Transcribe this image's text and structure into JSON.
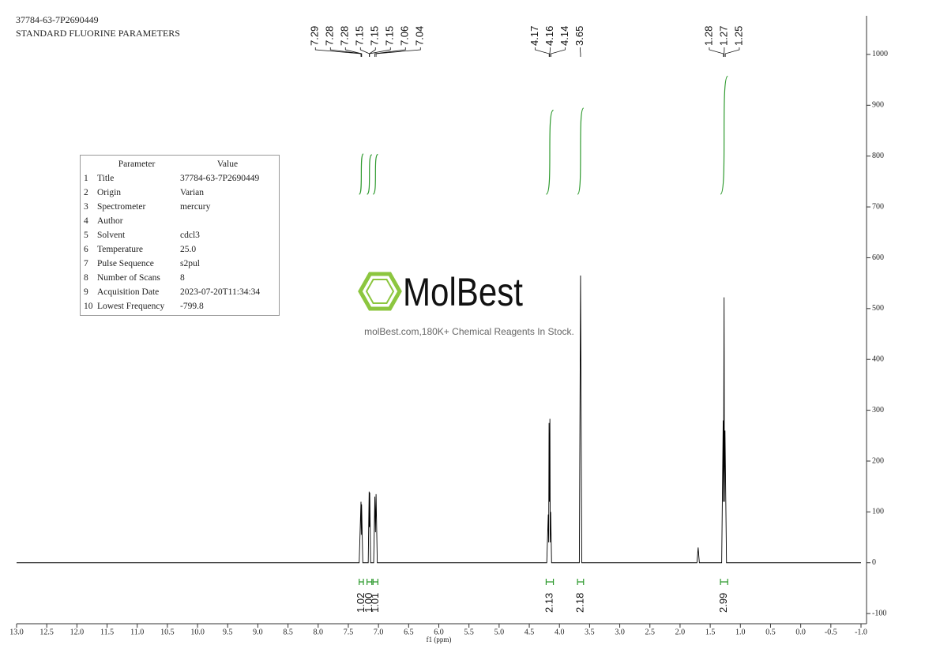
{
  "header": {
    "title": "37784-63-7P2690449",
    "subtitle": "STANDARD FLUORINE PARAMETERS"
  },
  "parameters": {
    "columns": [
      "Parameter",
      "Value"
    ],
    "rows": [
      {
        "index": 1,
        "name": "Title",
        "value": "37784-63-7P2690449"
      },
      {
        "index": 2,
        "name": "Origin",
        "value": "Varian"
      },
      {
        "index": 3,
        "name": "Spectrometer",
        "value": "mercury"
      },
      {
        "index": 4,
        "name": "Author"
      },
      {
        "index": 5,
        "name": "Solvent",
        "value": "cdcl3"
      },
      {
        "index": 6,
        "name": "Temperature",
        "value": "25.0"
      },
      {
        "index": 7,
        "name": "Pulse Sequence",
        "value": "s2pul"
      },
      {
        "index": 8,
        "name": "Number of Scans",
        "value": "8"
      },
      {
        "index": 9,
        "name": "Acquisition Date",
        "value": "2023-07-20T11:34:34"
      },
      {
        "index": 10,
        "name": "Lowest Frequency",
        "value": "-799.8"
      }
    ]
  },
  "watermark": {
    "name": "MolBest",
    "tagline": "molBest.com,180K+ Chemical Reagents In Stock."
  },
  "chart_data": {
    "type": "nmr",
    "x_label": "f1 (ppm)",
    "color": "#000000",
    "integral_color": "#2e9a2e",
    "xlim": [
      13.0,
      -1.0
    ],
    "ylim": [
      -120,
      1076
    ],
    "xticks": [
      {
        "value": 13,
        "label": "13.0"
      },
      12.5,
      {
        "value": 12,
        "label": "12.0"
      },
      11.5,
      {
        "value": 11,
        "label": "11.0"
      },
      10.5,
      {
        "value": 10,
        "label": "10.0"
      },
      9.5,
      {
        "value": 9,
        "label": "9.0"
      },
      8.5,
      {
        "value": 8,
        "label": "8.0"
      },
      7.5,
      {
        "value": 7,
        "label": "7.0"
      },
      6.5,
      {
        "value": 6,
        "label": "6.0"
      },
      5.5,
      {
        "value": 5,
        "label": "5.0"
      },
      4.5,
      {
        "value": 4,
        "label": "4.0"
      },
      3.5,
      {
        "value": 3,
        "label": "3.0"
      },
      2.5,
      {
        "value": 2,
        "label": "2.0"
      },
      1.5,
      {
        "value": 1,
        "label": "1.0"
      },
      0.5,
      {
        "value": 0,
        "label": "0.0"
      },
      -0.5,
      {
        "value": -1,
        "label": "-1.0"
      }
    ],
    "yticks": [
      -100,
      0,
      100,
      200,
      300,
      400,
      500,
      600,
      700,
      800,
      900,
      1000
    ],
    "x": [
      13.0,
      7.32,
      7.29,
      7.285,
      7.28,
      7.26,
      7.17,
      7.155,
      7.15,
      7.145,
      7.13,
      7.08,
      7.06,
      7.05,
      7.04,
      7.02,
      4.21,
      4.185,
      4.178,
      4.172,
      4.165,
      4.158,
      4.152,
      4.145,
      4.13,
      3.67,
      3.65,
      3.63,
      1.72,
      1.7,
      1.68,
      1.31,
      1.285,
      1.28,
      1.27,
      1.265,
      1.255,
      1.23,
      -1.0
    ],
    "values": [
      0,
      0,
      120,
      55,
      115,
      0,
      0,
      140,
      70,
      138,
      0,
      0,
      130,
      60,
      135,
      0,
      0,
      95,
      40,
      275,
      120,
      283,
      40,
      100,
      0,
      0,
      565,
      0,
      0,
      30,
      0,
      0,
      280,
      120,
      522,
      120,
      260,
      0,
      0
    ],
    "peak_picks": [
      7.29,
      7.28,
      7.28,
      7.15,
      7.15,
      7.15,
      7.06,
      7.04,
      4.17,
      4.16,
      4.14,
      3.65,
      1.28,
      1.27,
      1.25
    ],
    "integrals": [
      {
        "range": [
          7.32,
          7.25
        ],
        "value": 1.02
      },
      {
        "range": [
          7.19,
          7.11
        ],
        "value": 1.0,
        "label": "1.00"
      },
      {
        "range": [
          7.09,
          7.01
        ],
        "value": 1.01
      },
      {
        "range": [
          4.22,
          4.1
        ],
        "value": 2.13
      },
      {
        "range": [
          3.7,
          3.6
        ],
        "value": 2.18
      },
      {
        "range": [
          1.33,
          1.21
        ],
        "value": 2.99
      }
    ]
  }
}
